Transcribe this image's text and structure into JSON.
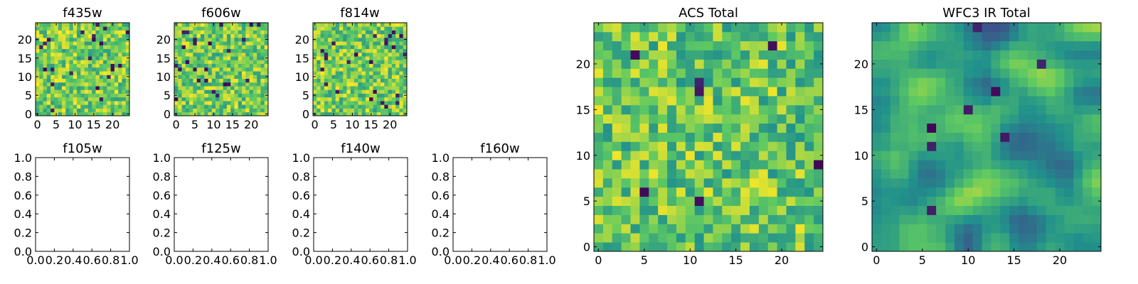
{
  "figure": {
    "colormap": [
      "#440154",
      "#3b528b",
      "#21918c",
      "#5ec962",
      "#fde725"
    ]
  },
  "chart_data": [
    {
      "type": "heatmap",
      "title": "f435w",
      "image_size": 25,
      "xlim": [
        -0.5,
        24.5
      ],
      "ylim": [
        -0.5,
        24.5
      ],
      "xticks": [
        0,
        5,
        10,
        15,
        20
      ],
      "yticks": [
        0,
        5,
        10,
        15,
        20
      ],
      "xtick_labels": [
        "0",
        "5",
        "10",
        "15",
        "20"
      ],
      "ytick_labels": [
        "0",
        "5",
        "10",
        "15",
        "20"
      ],
      "seed": 11,
      "smooth": 0,
      "value_range": [
        0.55,
        1.0
      ],
      "dark_pixels": 22,
      "grid": false
    },
    {
      "type": "heatmap",
      "title": "f606w",
      "image_size": 25,
      "xlim": [
        -0.5,
        24.5
      ],
      "ylim": [
        -0.5,
        24.5
      ],
      "xticks": [
        0,
        5,
        10,
        15,
        20
      ],
      "yticks": [
        0,
        5,
        10,
        15,
        20
      ],
      "xtick_labels": [
        "0",
        "5",
        "10",
        "15",
        "20"
      ],
      "ytick_labels": [
        "0",
        "5",
        "10",
        "15",
        "20"
      ],
      "seed": 23,
      "smooth": 0,
      "value_range": [
        0.55,
        1.0
      ],
      "dark_pixels": 24,
      "grid": false
    },
    {
      "type": "heatmap",
      "title": "f814w",
      "image_size": 25,
      "xlim": [
        -0.5,
        24.5
      ],
      "ylim": [
        -0.5,
        24.5
      ],
      "xticks": [
        0,
        5,
        10,
        15,
        20
      ],
      "yticks": [
        0,
        5,
        10,
        15,
        20
      ],
      "xtick_labels": [
        "0",
        "5",
        "10",
        "15",
        "20"
      ],
      "ytick_labels": [
        "0",
        "5",
        "10",
        "15",
        "20"
      ],
      "seed": 37,
      "smooth": 0,
      "value_range": [
        0.55,
        1.0
      ],
      "dark_pixels": 24,
      "grid": false
    },
    {
      "type": "scatter",
      "title": "f105w",
      "xlim": [
        0.0,
        1.0
      ],
      "ylim": [
        0.0,
        1.0
      ],
      "xticks": [
        0.0,
        0.2,
        0.4,
        0.6,
        0.8,
        1.0
      ],
      "yticks": [
        0.0,
        0.2,
        0.4,
        0.6,
        0.8,
        1.0
      ],
      "xtick_labels": [
        "0.0",
        "0.2",
        "0.4",
        "0.6",
        "0.8",
        "1.0"
      ],
      "ytick_labels": [
        "0.0",
        "0.2",
        "0.4",
        "0.6",
        "0.8",
        "1.0"
      ],
      "grid": false
    },
    {
      "type": "scatter",
      "title": "f125w",
      "xlim": [
        0.0,
        1.0
      ],
      "ylim": [
        0.0,
        1.0
      ],
      "xticks": [
        0.0,
        0.2,
        0.4,
        0.6,
        0.8,
        1.0
      ],
      "yticks": [
        0.0,
        0.2,
        0.4,
        0.6,
        0.8,
        1.0
      ],
      "xtick_labels": [
        "0.0",
        "0.2",
        "0.4",
        "0.6",
        "0.8",
        "1.0"
      ],
      "ytick_labels": [
        "0.0",
        "0.2",
        "0.4",
        "0.6",
        "0.8",
        "1.0"
      ],
      "grid": false
    },
    {
      "type": "scatter",
      "title": "f140w",
      "xlim": [
        0.0,
        1.0
      ],
      "ylim": [
        0.0,
        1.0
      ],
      "xticks": [
        0.0,
        0.2,
        0.4,
        0.6,
        0.8,
        1.0
      ],
      "yticks": [
        0.0,
        0.2,
        0.4,
        0.6,
        0.8,
        1.0
      ],
      "xtick_labels": [
        "0.0",
        "0.2",
        "0.4",
        "0.6",
        "0.8",
        "1.0"
      ],
      "ytick_labels": [
        "0.0",
        "0.2",
        "0.4",
        "0.6",
        "0.8",
        "1.0"
      ],
      "grid": false
    },
    {
      "type": "scatter",
      "title": "f160w",
      "xlim": [
        0.0,
        1.0
      ],
      "ylim": [
        0.0,
        1.0
      ],
      "xticks": [
        0.0,
        0.2,
        0.4,
        0.6,
        0.8,
        1.0
      ],
      "yticks": [
        0.0,
        0.2,
        0.4,
        0.6,
        0.8,
        1.0
      ],
      "xtick_labels": [
        "0.0",
        "0.2",
        "0.4",
        "0.6",
        "0.8",
        "1.0"
      ],
      "ytick_labels": [
        "0.0",
        "0.2",
        "0.4",
        "0.6",
        "0.8",
        "1.0"
      ],
      "grid": false
    },
    {
      "type": "heatmap",
      "title": "ACS Total",
      "image_size": 25,
      "xlim": [
        -0.5,
        24.5
      ],
      "ylim": [
        -0.5,
        24.5
      ],
      "xticks": [
        0,
        5,
        10,
        15,
        20
      ],
      "yticks": [
        0,
        5,
        10,
        15,
        20
      ],
      "xtick_labels": [
        "0",
        "5",
        "10",
        "15",
        "20"
      ],
      "ytick_labels": [
        "0",
        "5",
        "10",
        "15",
        "20"
      ],
      "seed": 53,
      "smooth": 0,
      "value_range": [
        0.5,
        0.98
      ],
      "dark_pixels": 7,
      "grid": false
    },
    {
      "type": "heatmap",
      "title": "WFC3 IR Total",
      "image_size": 25,
      "xlim": [
        -0.5,
        24.5
      ],
      "ylim": [
        -0.5,
        24.5
      ],
      "xticks": [
        0,
        5,
        10,
        15,
        20
      ],
      "yticks": [
        0,
        5,
        10,
        15,
        20
      ],
      "xtick_labels": [
        "0",
        "5",
        "10",
        "15",
        "20"
      ],
      "ytick_labels": [
        "0",
        "5",
        "10",
        "15",
        "20"
      ],
      "seed": 71,
      "smooth": 2,
      "value_range": [
        0.25,
        0.85
      ],
      "dark_pixels": 8,
      "grid": false
    }
  ]
}
